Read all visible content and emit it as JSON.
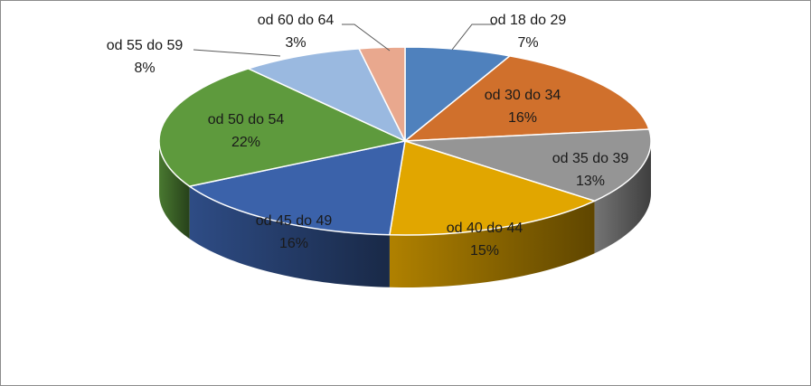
{
  "chart_data": {
    "type": "pie",
    "title": "",
    "slices": [
      {
        "label": "od 18 do 29",
        "value": 7,
        "display": "7%",
        "color": "#4f81bd"
      },
      {
        "label": "od 30 do 34",
        "value": 16,
        "display": "16%",
        "color": "#d0702c"
      },
      {
        "label": "od 35 do 39",
        "value": 13,
        "display": "13%",
        "color": "#959595"
      },
      {
        "label": "od 40 do 44",
        "value": 15,
        "display": "15%",
        "color": "#e1a600"
      },
      {
        "label": "od 45 do 49",
        "value": 16,
        "display": "16%",
        "color": "#3b62aa"
      },
      {
        "label": "od 50 do 54",
        "value": 22,
        "display": "22%",
        "color": "#5e9a3d"
      },
      {
        "label": "od 55 do 59",
        "value": 8,
        "display": "8%",
        "color": "#9ab9e0"
      },
      {
        "label": "od 60 do 64",
        "value": 3,
        "display": "3%",
        "color": "#e9a88e"
      }
    ]
  }
}
